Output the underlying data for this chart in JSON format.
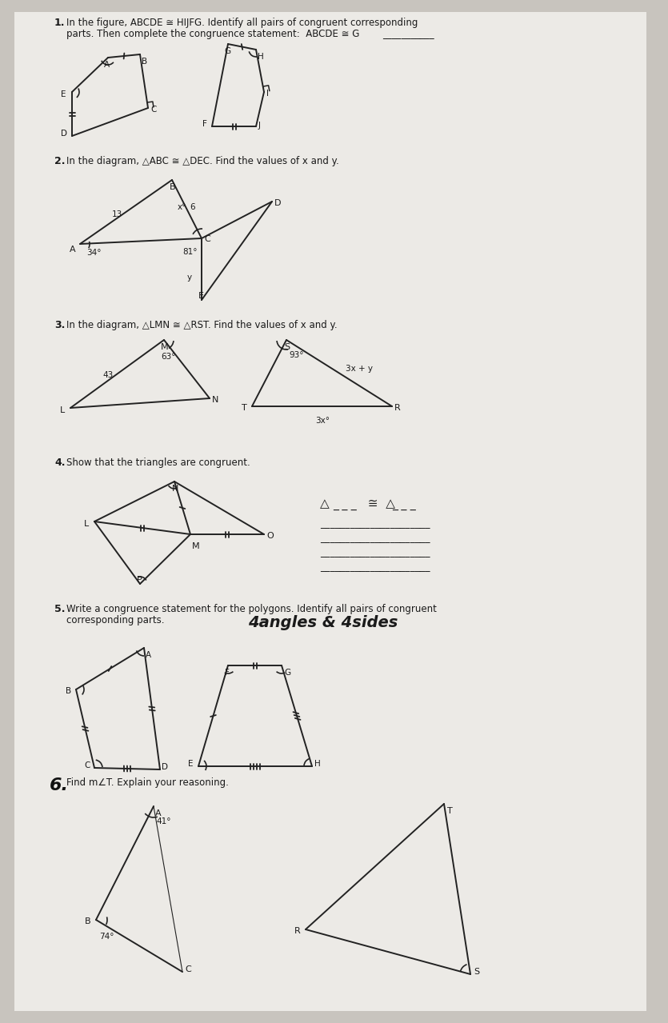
{
  "bg_color": "#c8c4be",
  "paper_color": "#eceae6",
  "text_color": "#1a1a1a",
  "line_color": "#222222",
  "q1_label": "1.",
  "q1_line1": "In the figure, ABCDE ≅ HIJFG. Identify all pairs of congruent corresponding",
  "q1_line2": "parts. Then complete the congruence statement:  ABCDE ≅ G",
  "q2_label": "2.",
  "q2_text": "In the diagram, △ABC ≅ △DEC. Find the values of x and y.",
  "q3_label": "3.",
  "q3_text": "In the diagram, △LMN ≅ △RST. Find the values of x and y.",
  "q4_label": "4.",
  "q4_text": "Show that the triangles are congruent.",
  "q5_label": "5.",
  "q5_line1": "Write a congruence statement for the polygons. Identify all pairs of congruent",
  "q5_line2": "corresponding parts.",
  "q5_handwritten": "4angles & 4sides",
  "q6_label": "6.",
  "q6_text": "Find m∠T. Explain your reasoning."
}
